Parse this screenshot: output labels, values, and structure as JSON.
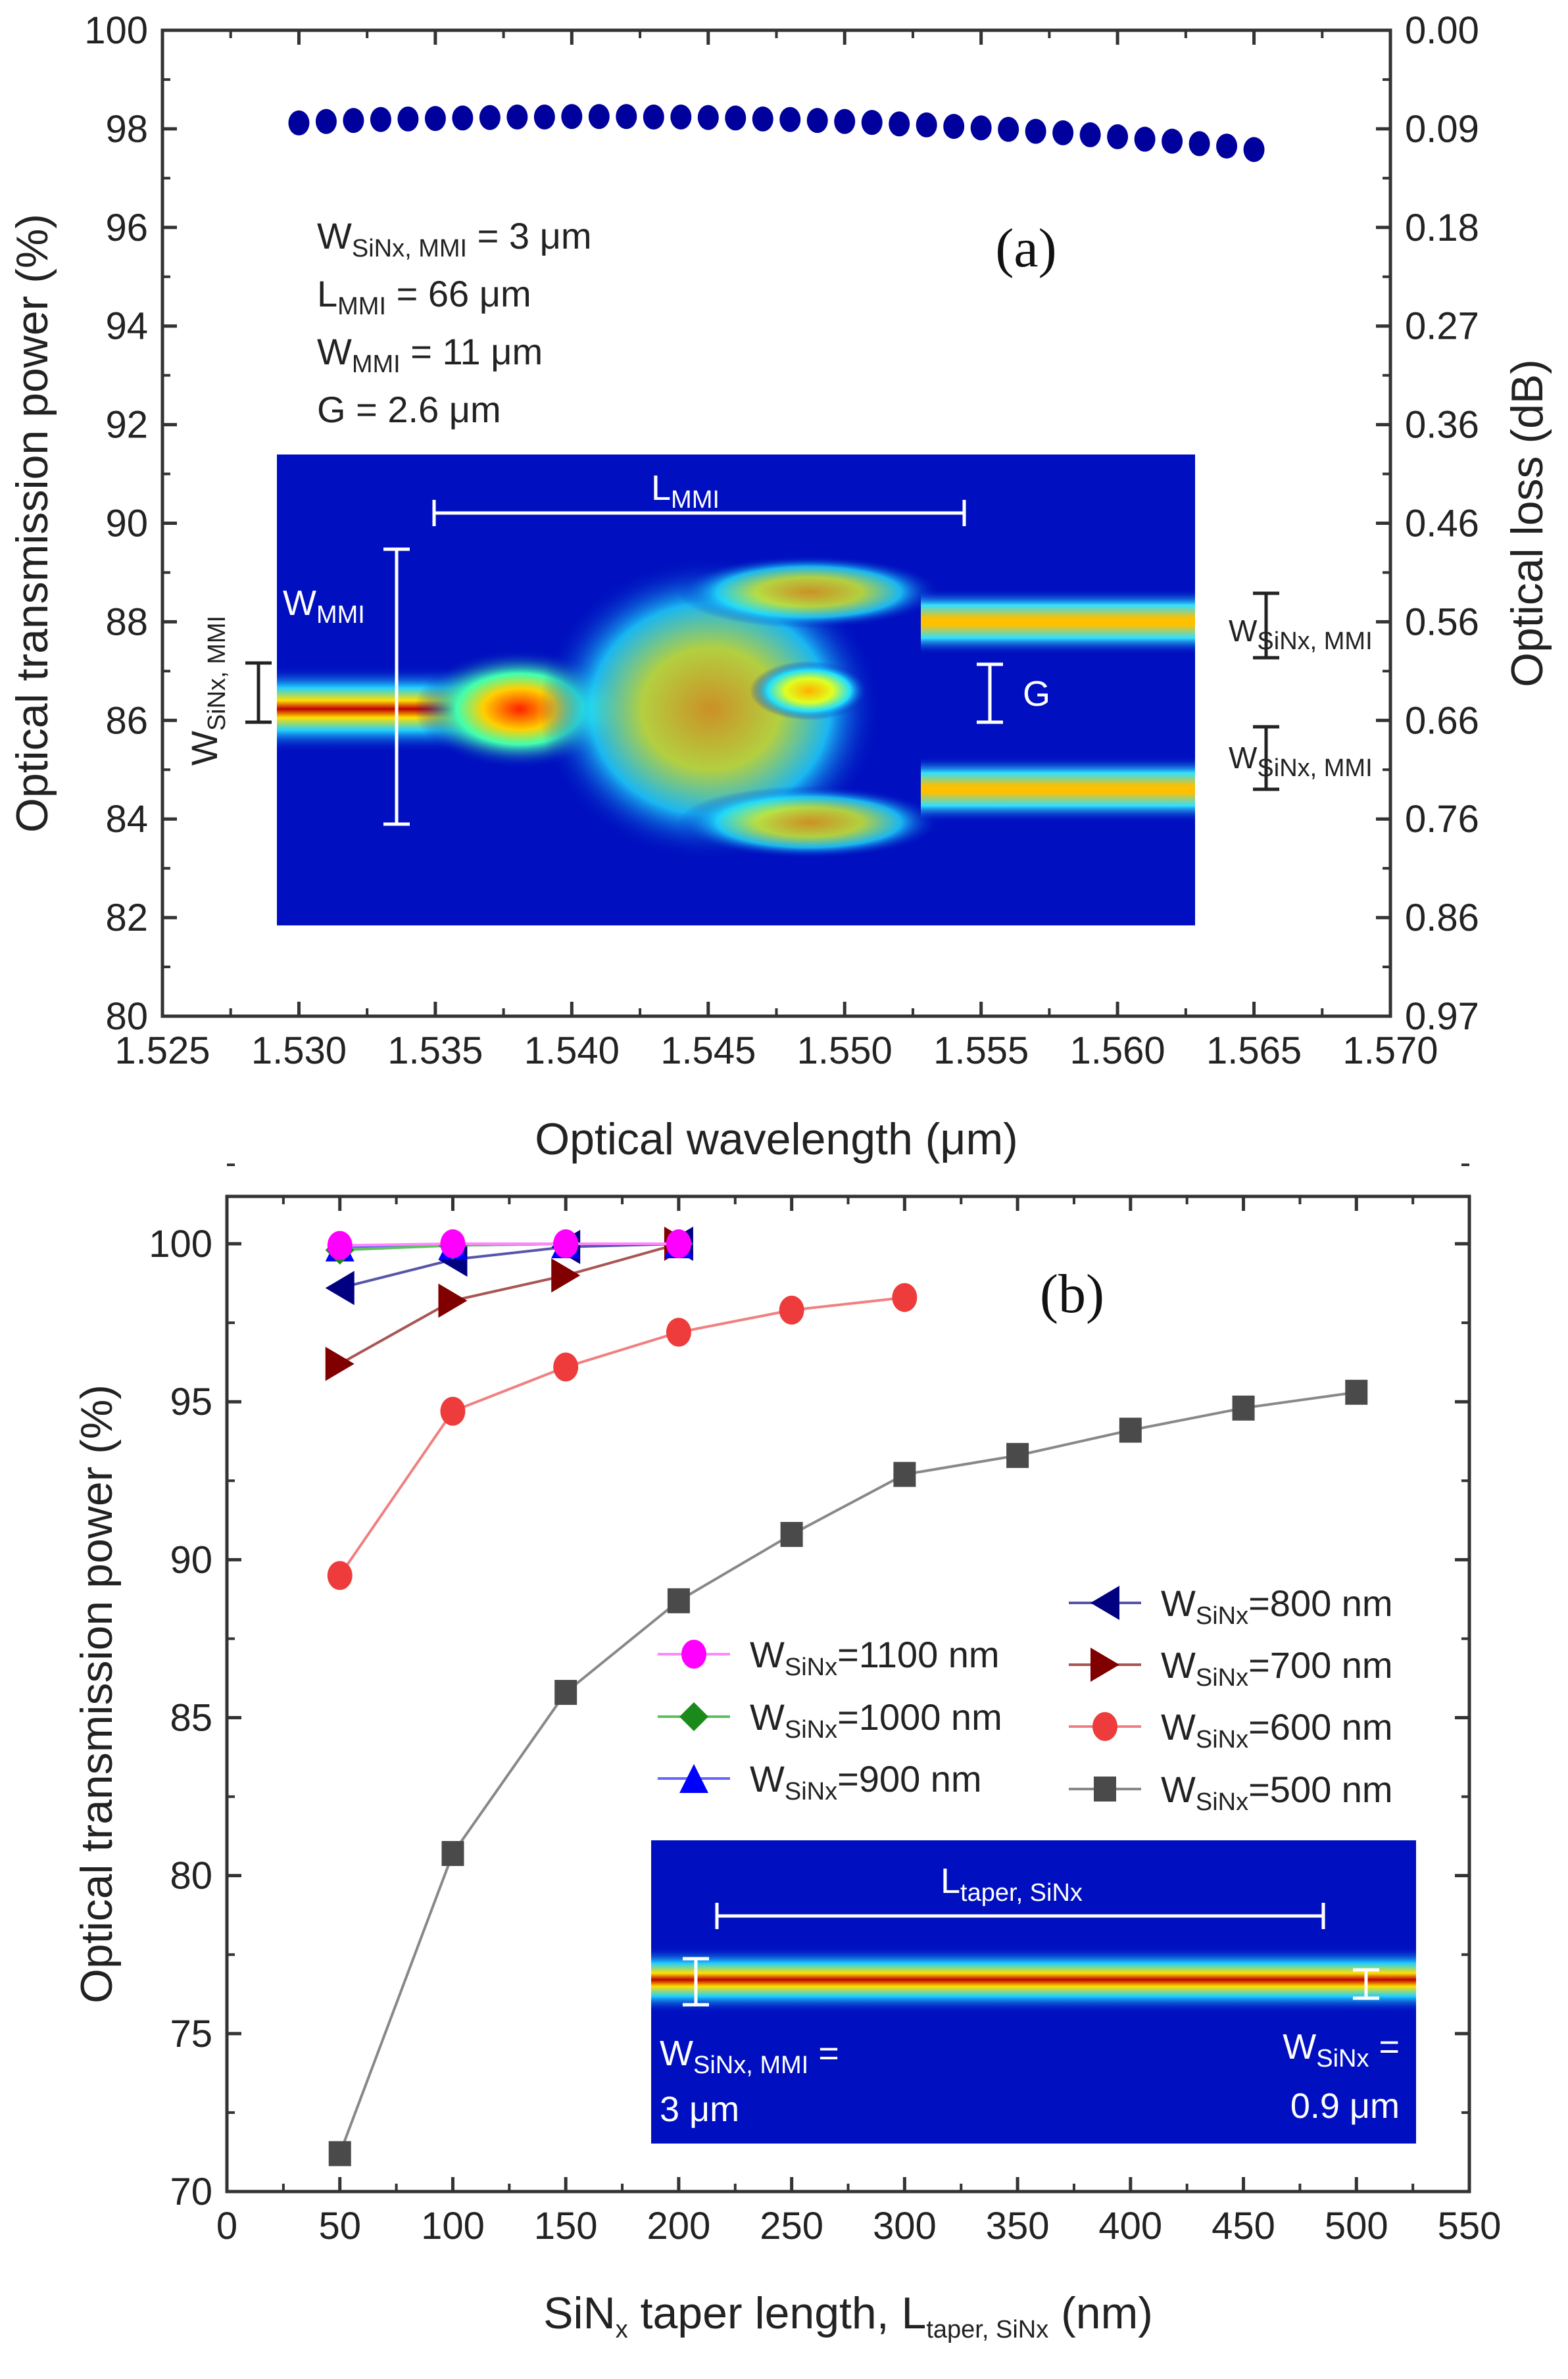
{
  "chart_data": [
    {
      "type": "scatter",
      "panel_label": "(a)",
      "xlabel": "Optical wavelength (μm)",
      "ylabel": "Optical transmission power (%)",
      "ylabel_right": "Optical loss (dB)",
      "xlim": [
        1.525,
        1.57
      ],
      "ylim": [
        80,
        100
      ],
      "xticks": [
        "1.525",
        "1.530",
        "1.535",
        "1.540",
        "1.545",
        "1.550",
        "1.555",
        "1.560",
        "1.565",
        "1.570"
      ],
      "yticks": [
        "80",
        "82",
        "84",
        "86",
        "88",
        "90",
        "92",
        "94",
        "96",
        "98",
        "100"
      ],
      "yticks_right": [
        "0.97",
        "0.86",
        "0.76",
        "0.66",
        "0.56",
        "0.46",
        "0.36",
        "0.27",
        "0.18",
        "0.09",
        "0.00"
      ],
      "color": "#00009c",
      "x": [
        1.53,
        1.531,
        1.532,
        1.533,
        1.534,
        1.535,
        1.536,
        1.537,
        1.538,
        1.539,
        1.54,
        1.541,
        1.542,
        1.543,
        1.544,
        1.545,
        1.546,
        1.547,
        1.548,
        1.549,
        1.55,
        1.551,
        1.552,
        1.553,
        1.554,
        1.555,
        1.556,
        1.557,
        1.558,
        1.559,
        1.56,
        1.561,
        1.562,
        1.563,
        1.564,
        1.565
      ],
      "y": [
        98.12,
        98.15,
        98.17,
        98.19,
        98.2,
        98.21,
        98.22,
        98.23,
        98.24,
        98.24,
        98.25,
        98.25,
        98.25,
        98.24,
        98.24,
        98.23,
        98.22,
        98.2,
        98.19,
        98.17,
        98.15,
        98.13,
        98.1,
        98.08,
        98.05,
        98.02,
        97.99,
        97.95,
        97.92,
        97.88,
        97.84,
        97.79,
        97.75,
        97.7,
        97.65,
        97.58
      ],
      "annotations": [
        {
          "main": "W",
          "sub": "SiNx, MMI",
          "rest": " = 3 μm"
        },
        {
          "main": "L",
          "sub": "MMI",
          "rest": " = 66 μm"
        },
        {
          "main": "W",
          "sub": "MMI",
          "rest": " = 11 μm"
        },
        {
          "main": "G",
          "sub": "",
          "rest": " = 2.6 μm"
        }
      ],
      "inset_labels": {
        "l_mmi": [
          "L",
          "MMI"
        ],
        "w_mmi": [
          "W",
          "MMI"
        ],
        "w_sinx_mmi": [
          "W",
          "SiNx, MMI"
        ],
        "g": "G",
        "w_out_top": [
          "W",
          "SiNx, MMI"
        ],
        "w_out_bottom": [
          "W",
          "SiNx, MMI"
        ]
      }
    },
    {
      "type": "line",
      "panel_label": "(b)",
      "xlabel_parts": [
        "SiN",
        "x",
        " taper length, L",
        "taper, SiNx",
        " (nm)"
      ],
      "ylabel": "Optical transmission power (%)",
      "xlim": [
        0,
        550
      ],
      "ylim": [
        70,
        101.5
      ],
      "xticks": [
        "0",
        "50",
        "100",
        "150",
        "200",
        "250",
        "300",
        "350",
        "400",
        "450",
        "500",
        "550"
      ],
      "yticks": [
        "70",
        "75",
        "80",
        "85",
        "90",
        "95",
        "100"
      ],
      "legend_position": "center-right",
      "series": [
        {
          "name_main": "W",
          "name_sub": "SiNx",
          "name_rest": "=1100 nm",
          "color": "#ff00ff",
          "line": "#ff88ff",
          "marker": "circle",
          "x": [
            50,
            100,
            150,
            200
          ],
          "y": [
            99.95,
            100,
            100,
            100
          ]
        },
        {
          "name_main": "W",
          "name_sub": "SiNx",
          "name_rest": "=1000 nm",
          "color": "#1a8a1a",
          "line": "#60c060",
          "marker": "diamond",
          "x": [
            50,
            100,
            150,
            200
          ],
          "y": [
            99.8,
            99.95,
            100,
            100
          ]
        },
        {
          "name_main": "W",
          "name_sub": "SiNx",
          "name_rest": "=900 nm",
          "color": "#0000ff",
          "line": "#6666ff",
          "marker": "triangle-up",
          "x": [
            50,
            100,
            150,
            200
          ],
          "y": [
            99.9,
            99.95,
            100,
            100
          ]
        },
        {
          "name_main": "W",
          "name_sub": "SiNx",
          "name_rest": "=800 nm",
          "color": "#000080",
          "line": "#5555aa",
          "marker": "triangle-left",
          "x": [
            50,
            100,
            150,
            200
          ],
          "y": [
            98.6,
            99.5,
            99.9,
            100
          ]
        },
        {
          "name_main": "W",
          "name_sub": "SiNx",
          "name_rest": "=700 nm",
          "color": "#800000",
          "line": "#aa5555",
          "marker": "triangle-right",
          "x": [
            50,
            100,
            150,
            200
          ],
          "y": [
            96.2,
            98.2,
            99.0,
            100
          ]
        },
        {
          "name_main": "W",
          "name_sub": "SiNx",
          "name_rest": "=600 nm",
          "color": "#ee3b3b",
          "line": "#f08080",
          "marker": "circle",
          "x": [
            50,
            100,
            150,
            200,
            250,
            300
          ],
          "y": [
            89.5,
            94.7,
            96.1,
            97.2,
            97.9,
            98.3
          ]
        },
        {
          "name_main": "W",
          "name_sub": "SiNx",
          "name_rest": "=500 nm",
          "color": "#4a4a4a",
          "line": "#888888",
          "marker": "square",
          "x": [
            50,
            100,
            150,
            200,
            250,
            300,
            350,
            400,
            450,
            500
          ],
          "y": [
            71.2,
            80.7,
            85.8,
            88.7,
            90.8,
            92.7,
            93.3,
            94.1,
            94.8,
            95.3
          ]
        }
      ],
      "inset_labels": {
        "l_taper": [
          "L",
          "taper, SiNx"
        ],
        "left_main": "W",
        "left_sub": "SiNx, MMI",
        "left_rest": " =",
        "left_val": "3 μm",
        "right_main": "W",
        "right_sub": "SiNx",
        "right_rest": " =",
        "right_val": "0.9 μm"
      }
    }
  ]
}
